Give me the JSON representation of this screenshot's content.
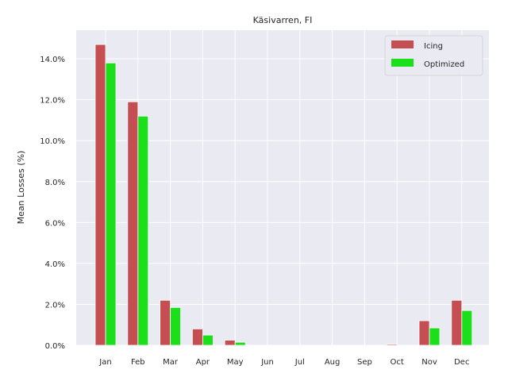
{
  "chart_data": {
    "type": "bar",
    "title": "Käsivarren, FI",
    "ylabel": "Mean Losses (%)",
    "xlabel": "",
    "categories": [
      "Jan",
      "Feb",
      "Mar",
      "Apr",
      "May",
      "Jun",
      "Jul",
      "Aug",
      "Sep",
      "Oct",
      "Nov",
      "Dec"
    ],
    "series": [
      {
        "name": "Icing",
        "color": "#c44e52",
        "values": [
          14.7,
          11.9,
          2.2,
          0.8,
          0.25,
          0.0,
          0.0,
          0.0,
          0.0,
          0.05,
          1.2,
          2.2
        ]
      },
      {
        "name": "Optimized",
        "color": "#1adf1a",
        "values": [
          13.8,
          11.2,
          1.85,
          0.5,
          0.15,
          0.0,
          0.0,
          0.0,
          0.0,
          0.0,
          0.85,
          1.7
        ]
      }
    ],
    "ylim": [
      0,
      15.4
    ],
    "yticks": [
      "0.0%",
      "2.0%",
      "4.0%",
      "6.0%",
      "8.0%",
      "10.0%",
      "12.0%",
      "14.0%"
    ],
    "ytick_values": [
      0,
      2,
      4,
      6,
      8,
      10,
      12,
      14
    ],
    "grid": true,
    "legend": "top-right"
  }
}
